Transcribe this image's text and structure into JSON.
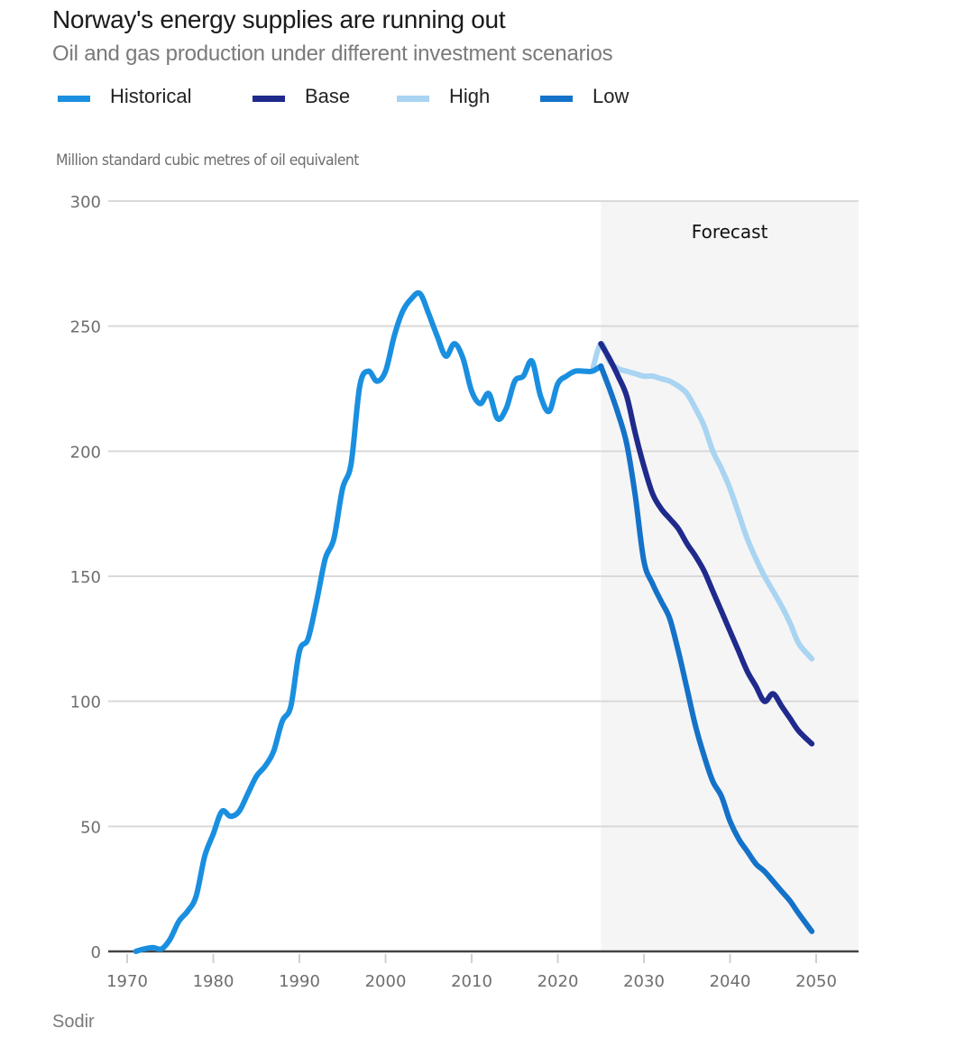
{
  "header": {
    "title": "Norway's energy supplies are running out",
    "subtitle": "Oil and gas production under different investment scenarios"
  },
  "legend": [
    {
      "label": "Historical",
      "color": "#1a8fe0"
    },
    {
      "label": "Base",
      "color": "#1f2a8c"
    },
    {
      "label": "High",
      "color": "#a9d4f2"
    },
    {
      "label": "Low",
      "color": "#1572c9"
    }
  ],
  "source": "Sodir",
  "chart_data": {
    "type": "line",
    "title": "Norway's energy supplies are running out",
    "subtitle": "Oil and gas production under different investment scenarios",
    "xlabel": "",
    "ylabel": "Million standard cubic metres of oil equivalent",
    "xlim": [
      1967.8,
      2055
    ],
    "ylim": [
      0,
      300
    ],
    "xticks": [
      1970,
      1980,
      1990,
      2000,
      2010,
      2020,
      2030,
      2040,
      2050
    ],
    "yticks": [
      0,
      50,
      100,
      150,
      200,
      250,
      300
    ],
    "grid": true,
    "legend_position": "top-left",
    "annotations": [
      {
        "text": "Forecast",
        "x_start": 2025,
        "x_end": 2055
      }
    ],
    "series": [
      {
        "name": "Historical",
        "color": "#1a8fe0",
        "x": [
          1971,
          1972,
          1973,
          1974,
          1975,
          1976,
          1977,
          1978,
          1979,
          1980,
          1981,
          1982,
          1983,
          1984,
          1985,
          1986,
          1987,
          1988,
          1989,
          1990,
          1991,
          1992,
          1993,
          1994,
          1995,
          1996,
          1997,
          1998,
          1999,
          2000,
          2001,
          2002,
          2003,
          2004,
          2005,
          2006,
          2007,
          2008,
          2009,
          2010,
          2011,
          2012,
          2013,
          2014,
          2015,
          2016,
          2017,
          2018,
          2019,
          2020,
          2021,
          2022,
          2023,
          2024,
          2025
        ],
        "values": [
          0,
          1,
          1.5,
          1,
          5,
          12,
          16,
          22,
          38,
          47,
          56,
          54,
          56,
          63,
          70,
          74,
          80,
          92,
          98,
          120,
          125,
          140,
          157,
          165,
          185,
          195,
          226,
          232,
          228,
          232,
          246,
          256,
          261,
          263,
          255,
          246,
          238,
          243,
          237,
          224,
          219,
          223,
          213,
          217,
          228,
          230,
          236,
          222,
          216,
          227,
          230,
          232,
          232,
          232,
          234
        ]
      },
      {
        "name": "High",
        "color": "#a9d4f2",
        "x": [
          2024,
          2025,
          2026,
          2027,
          2028,
          2029,
          2030,
          2031,
          2032,
          2033,
          2034,
          2035,
          2036,
          2037,
          2038,
          2039,
          2040,
          2041,
          2042,
          2043,
          2044,
          2045,
          2046,
          2047,
          2048,
          2049.5
        ],
        "values": [
          232,
          243,
          236,
          233,
          232,
          231,
          230,
          230,
          229,
          228,
          226,
          223,
          217,
          210,
          200,
          193,
          185,
          175,
          165,
          157,
          150,
          144,
          138,
          131,
          123,
          117
        ]
      },
      {
        "name": "Base",
        "color": "#1f2a8c",
        "x": [
          2025,
          2026,
          2027,
          2028,
          2029,
          2030,
          2031,
          2032,
          2033,
          2034,
          2035,
          2036,
          2037,
          2038,
          2039,
          2040,
          2041,
          2042,
          2043,
          2044,
          2045,
          2046,
          2047,
          2048,
          2049.5
        ],
        "values": [
          243,
          237,
          230,
          222,
          207,
          194,
          183,
          177,
          173,
          169,
          163,
          158,
          152,
          144,
          136,
          128,
          120,
          112,
          106,
          100,
          103,
          98,
          93,
          88,
          83
        ]
      },
      {
        "name": "Low",
        "color": "#1572c9",
        "x": [
          2025,
          2026,
          2027,
          2028,
          2029,
          2030,
          2031,
          2032,
          2033,
          2034,
          2035,
          2036,
          2037,
          2038,
          2039,
          2040,
          2041,
          2042,
          2043,
          2044,
          2045,
          2046,
          2047,
          2048,
          2049.5
        ],
        "values": [
          234,
          225,
          215,
          203,
          182,
          156,
          147,
          140,
          133,
          120,
          105,
          90,
          78,
          68,
          62,
          52,
          45,
          40,
          35,
          32,
          28,
          24,
          20,
          15,
          8
        ]
      }
    ]
  }
}
